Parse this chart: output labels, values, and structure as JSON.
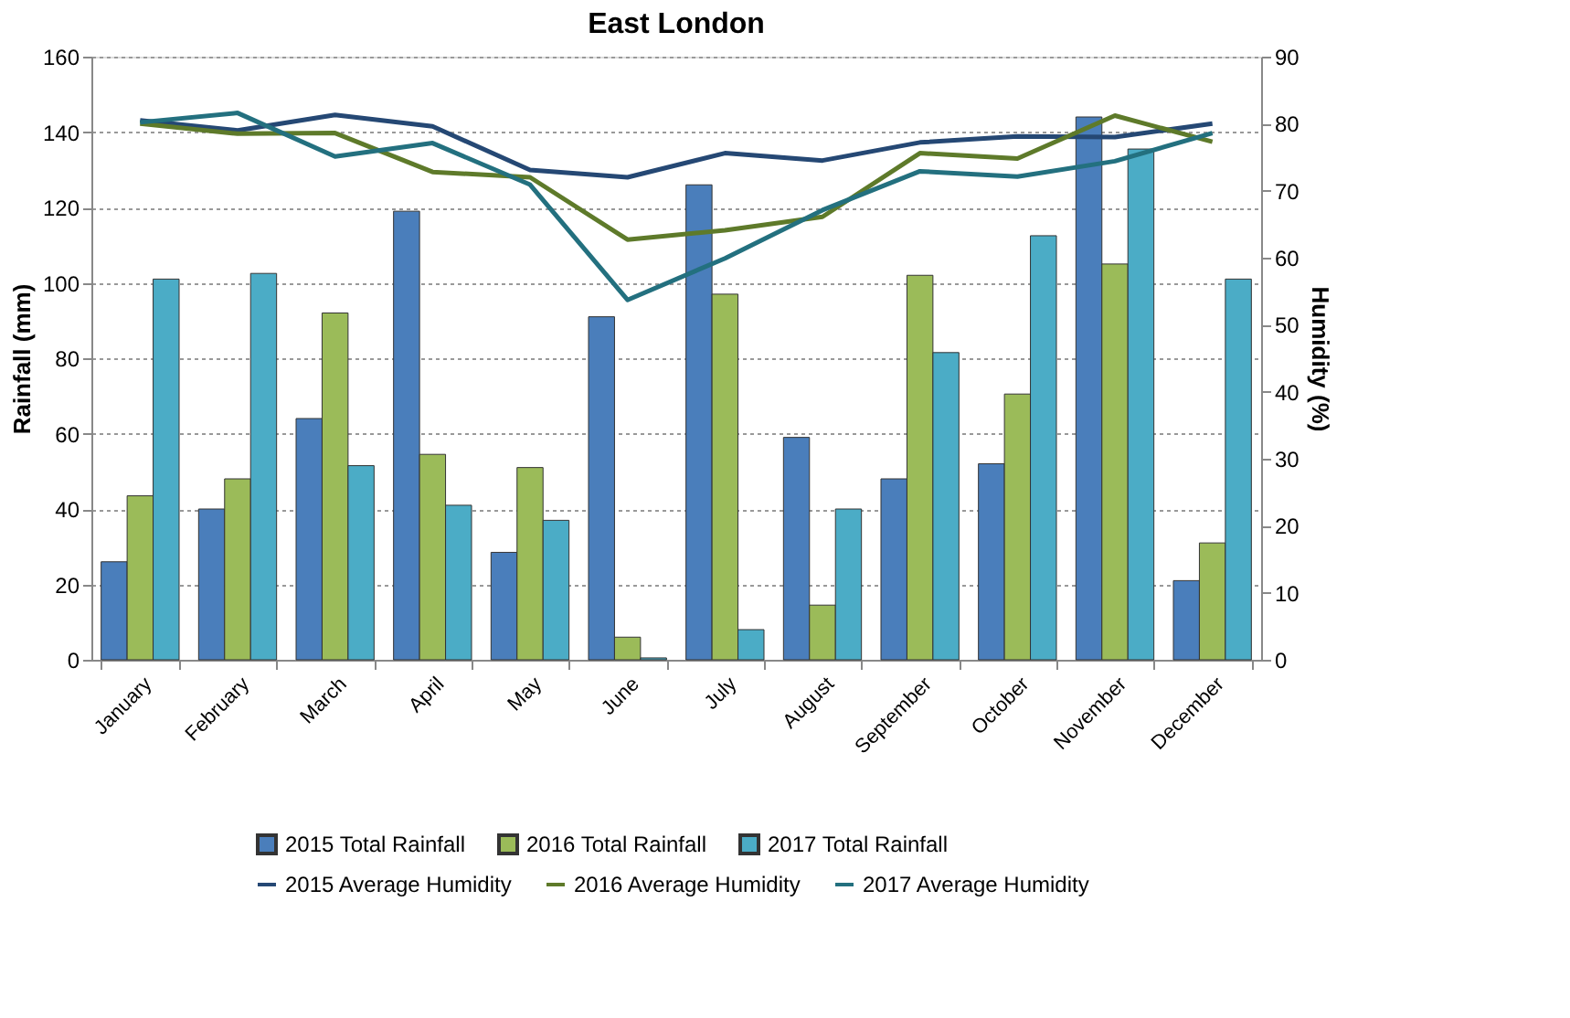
{
  "chart_data": {
    "type": "bar",
    "title": "East London",
    "ylabel": "Rainfall (mm)",
    "y2label": "Humidity (%)",
    "categories": [
      "January",
      "February",
      "March",
      "April",
      "May",
      "June",
      "July",
      "August",
      "September",
      "October",
      "November",
      "December"
    ],
    "series": [
      {
        "name": "2015 Total Rainfall",
        "color": "#4a7ebb",
        "values": [
          26,
          40,
          64,
          119,
          28.5,
          91,
          126,
          59,
          48,
          52,
          144,
          21
        ]
      },
      {
        "name": "2016 Total Rainfall",
        "color": "#9bbb59",
        "values": [
          43.5,
          48,
          92,
          54.5,
          51,
          6,
          97,
          14.5,
          102,
          70.5,
          105,
          31
        ]
      },
      {
        "name": "2017 Total Rainfall",
        "color": "#4bacc6",
        "values": [
          101,
          102.5,
          51.5,
          41,
          37,
          0.5,
          8,
          40,
          81.5,
          112.5,
          135.5,
          101
        ]
      },
      {
        "name": "2015 Average Humidity",
        "type": "line",
        "axis": "y2",
        "color": "#254874",
        "values": [
          80.5,
          79,
          81.3,
          79.6,
          73.1,
          72,
          75.6,
          74.5,
          77.2,
          78.1,
          78,
          80
        ]
      },
      {
        "name": "2016 Average Humidity",
        "type": "line",
        "axis": "y2",
        "color": "#5e7a2a",
        "values": [
          80,
          78.5,
          78.6,
          72.8,
          72,
          62.7,
          64.1,
          66.1,
          75.6,
          74.8,
          81.2,
          77.3
        ]
      },
      {
        "name": "2017 Average Humidity",
        "type": "line",
        "axis": "y2",
        "color": "#23707f",
        "values": [
          80.2,
          81.6,
          75.1,
          77.1,
          70.9,
          53.7,
          59.9,
          67.1,
          72.9,
          72.1,
          74.4,
          78.6
        ]
      }
    ],
    "ylim": [
      0,
      160
    ],
    "yticks": [
      0,
      20,
      40,
      60,
      80,
      100,
      120,
      140,
      160
    ],
    "y2lim": [
      0,
      90
    ],
    "y2ticks": [
      0,
      10,
      20,
      30,
      40,
      50,
      60,
      70,
      80,
      90
    ],
    "grid": "y",
    "legend": "bottom",
    "marker": "none",
    "line_style": "solid"
  }
}
